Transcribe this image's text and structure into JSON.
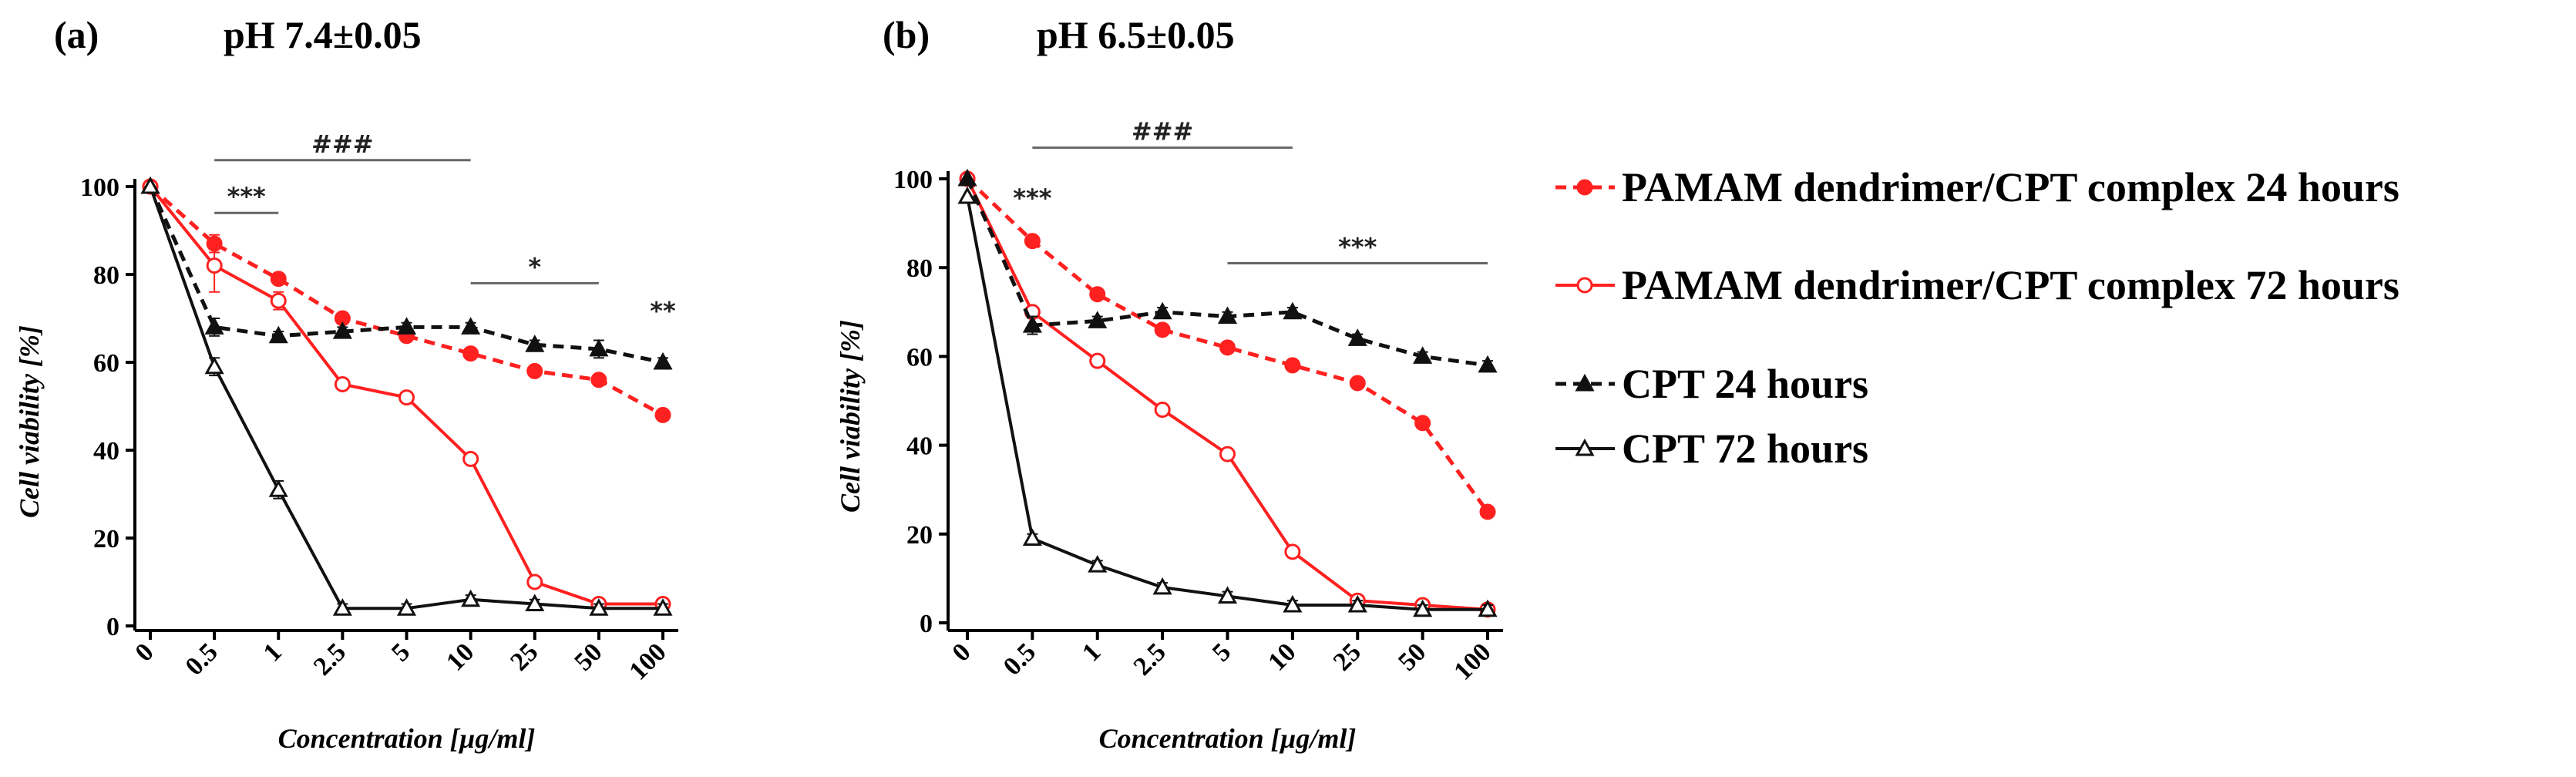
{
  "legend": [
    {
      "label": "PAMAM dendrimer/CPT complex 24 hours",
      "color": "#ff2020",
      "dash": true,
      "marker": "circle"
    },
    {
      "label": "PAMAM dendrimer/CPT complex 72 hours",
      "color": "#ff2020",
      "dash": false,
      "marker": "circle-open"
    },
    {
      "label": "CPT 24 hours",
      "color": "#111111",
      "dash": true,
      "marker": "triangle"
    },
    {
      "label": "CPT 72 hours",
      "color": "#111111",
      "dash": false,
      "marker": "triangle-open"
    }
  ],
  "chart_data": [
    {
      "type": "line",
      "panel_label": "(a)",
      "title": "pH 7.4±0.05",
      "xlabel": "Concentration [µg/ml]",
      "ylabel": "Cell viability [%]",
      "categories": [
        "0",
        "0.5",
        "1",
        "2.5",
        "5",
        "10",
        "25",
        "50",
        "100"
      ],
      "ylim": [
        0,
        100
      ],
      "yticks": [
        0,
        20,
        40,
        60,
        80,
        100
      ],
      "series": [
        {
          "name": "PAMAM dendrimer/CPT complex 24 hours",
          "values": [
            100,
            87,
            79,
            70,
            66,
            62,
            58,
            56,
            48
          ],
          "errors": [
            0,
            2,
            1,
            1,
            1,
            1,
            1,
            1,
            1
          ]
        },
        {
          "name": "PAMAM dendrimer/CPT complex 72 hours",
          "values": [
            100,
            82,
            74,
            55,
            52,
            38,
            10,
            5,
            5
          ],
          "errors": [
            0,
            6,
            2,
            1,
            1,
            1,
            1,
            1,
            1
          ]
        },
        {
          "name": "CPT 24 hours",
          "values": [
            100,
            68,
            66,
            67,
            68,
            68,
            64,
            63,
            60
          ],
          "errors": [
            0,
            2,
            1,
            1,
            1,
            1,
            1,
            2,
            1
          ]
        },
        {
          "name": "CPT 72 hours",
          "values": [
            100,
            59,
            31,
            4,
            4,
            6,
            5,
            4,
            4
          ],
          "errors": [
            0,
            2,
            2,
            1,
            1,
            1,
            1,
            1,
            1
          ]
        }
      ],
      "annotations": [
        {
          "text": "###",
          "from": "0.5",
          "to": "10",
          "level": 106
        },
        {
          "text": "***",
          "from": "0.5",
          "to": "1",
          "level": 94
        },
        {
          "text": "*",
          "from": "10",
          "to": "50",
          "level": 78
        },
        {
          "text": "**",
          "at": "100",
          "level": 68
        }
      ]
    },
    {
      "type": "line",
      "panel_label": "(b)",
      "title": "pH 6.5±0.05",
      "xlabel": "Concentration [µg/ml]",
      "ylabel": "Cell viability [%]",
      "categories": [
        "0",
        "0.5",
        "1",
        "2.5",
        "5",
        "10",
        "25",
        "50",
        "100"
      ],
      "ylim": [
        0,
        100
      ],
      "yticks": [
        0,
        20,
        40,
        60,
        80,
        100
      ],
      "series": [
        {
          "name": "PAMAM dendrimer/CPT complex 24 hours",
          "values": [
            100,
            86,
            74,
            66,
            62,
            58,
            54,
            45,
            25
          ],
          "errors": [
            0,
            1,
            1,
            1,
            1,
            1,
            1,
            1,
            1
          ]
        },
        {
          "name": "PAMAM dendrimer/CPT complex 72 hours",
          "values": [
            100,
            70,
            59,
            48,
            38,
            16,
            5,
            4,
            3
          ],
          "errors": [
            0,
            1,
            1,
            1,
            1,
            1,
            1,
            1,
            1
          ]
        },
        {
          "name": "CPT 24 hours",
          "values": [
            100,
            67,
            68,
            70,
            69,
            70,
            64,
            60,
            58
          ],
          "errors": [
            0,
            2,
            1,
            1,
            1,
            1,
            1,
            1,
            1
          ]
        },
        {
          "name": "CPT 72 hours",
          "values": [
            96,
            19,
            13,
            8,
            6,
            4,
            4,
            3,
            3
          ],
          "errors": [
            0,
            1,
            1,
            1,
            1,
            1,
            1,
            1,
            1
          ]
        }
      ],
      "annotations": [
        {
          "text": "###",
          "from": "0.5",
          "to": "10",
          "level": 107
        },
        {
          "text": "***",
          "at": "0.5",
          "level": 92
        },
        {
          "text": "***",
          "from": "5",
          "to": "100",
          "level": 81
        }
      ]
    }
  ]
}
